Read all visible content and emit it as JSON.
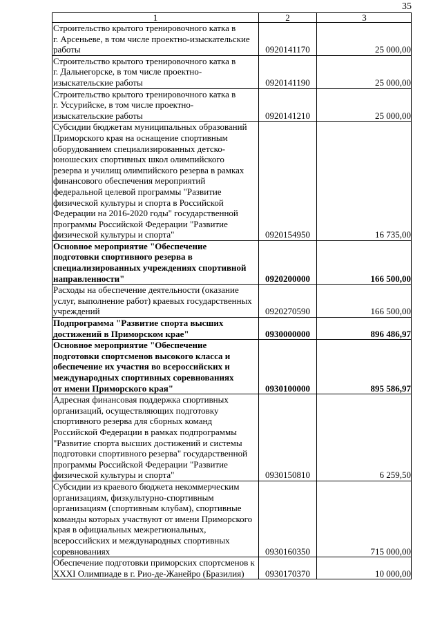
{
  "page_number": "35",
  "table": {
    "header": [
      "1",
      "2",
      "3"
    ],
    "rows": [
      {
        "bold": false,
        "lines": [
          "Строительство крытого тренировочного катка в",
          "г. Арсеньеве, в том числе проектно-изыскательские",
          "работы"
        ],
        "code": "0920141170",
        "amount": "25 000,00"
      },
      {
        "bold": false,
        "lines": [
          "Строительство крытого тренировочного катка в",
          "г. Дальнегорске, в том числе проектно-",
          "изыскательские работы"
        ],
        "code": "0920141190",
        "amount": "25 000,00"
      },
      {
        "bold": false,
        "lines": [
          "Строительство крытого тренировочного катка в",
          "г. Уссурийске, в том числе проектно-",
          "изыскательские работы"
        ],
        "code": "0920141210",
        "amount": "25 000,00"
      },
      {
        "bold": false,
        "lines": [
          "Субсидии бюджетам муниципальных образований",
          "Приморского края на оснащение спортивным",
          "оборудованием специализированных детско-",
          "юношеских спортивных школ олимпийского",
          "резерва и училищ олимпийского резерва в рамках",
          "финансового обеспечения мероприятий",
          "федеральной целевой программы \"Развитие",
          "физической культуры и спорта в Российской",
          "Федерации на 2016-2020 годы\" государственной",
          "программы Российской Федерации \"Развитие",
          "физической культуры и спорта\""
        ],
        "code": "0920154950",
        "amount": "16 735,00"
      },
      {
        "bold": true,
        "lines": [
          "Основное мероприятие \"Обеспечение",
          "подготовки спортивного резерва в",
          "специализированных учреждениях спортивной",
          "направленности\""
        ],
        "code": "0920200000",
        "amount": "166 500,00"
      },
      {
        "bold": false,
        "lines": [
          "Расходы на обеспечение деятельности (оказание",
          "услуг, выполнение работ) краевых государственных",
          "учреждений"
        ],
        "code": "0920270590",
        "amount": "166 500,00"
      },
      {
        "bold": true,
        "lines": [
          "Подпрограмма \"Развитие спорта высших",
          "достижений в Приморском крае\""
        ],
        "code": "0930000000",
        "amount": "896 486,97"
      },
      {
        "bold": true,
        "lines": [
          "Основное мероприятие \"Обеспечение",
          "подготовки спортсменов высокого класса и",
          "обеспечение их участия во всероссийских и",
          "международных спортивных соревнованиях",
          "от имени Приморского края\""
        ],
        "code": "0930100000",
        "amount": "895 586,97"
      },
      {
        "bold": false,
        "lines": [
          "Адресная финансовая поддержка спортивных",
          "организаций, осуществляющих подготовку",
          "спортивного резерва для сборных команд",
          "Российской Федерации в рамках подпрограммы",
          "\"Развитие спорта высших достижений и системы",
          "подготовки спортивного резерва\" государственной",
          "программы Российской Федерации \"Развитие",
          "физической культуры и спорта\""
        ],
        "code": "0930150810",
        "amount": "6 259,50"
      },
      {
        "bold": false,
        "lines": [
          "Субсидии из краевого бюджета некоммерческим",
          "организациям, физкультурно-спортивным",
          "организациям (спортивным клубам), спортивные",
          "команды которых участвуют от имени Приморского",
          "края в официальных межрегиональных,",
          "всероссийских и международных спортивных",
          "соревнованиях"
        ],
        "code": "0930160350",
        "amount": "715 000,00"
      },
      {
        "bold": false,
        "lines": [
          "Обеспечение подготовки приморских спортсменов к",
          "XXXI Олимпиаде в г. Рио-де-Жанейро (Бразилия)"
        ],
        "code": "0930170370",
        "amount": "10 000,00"
      }
    ]
  }
}
